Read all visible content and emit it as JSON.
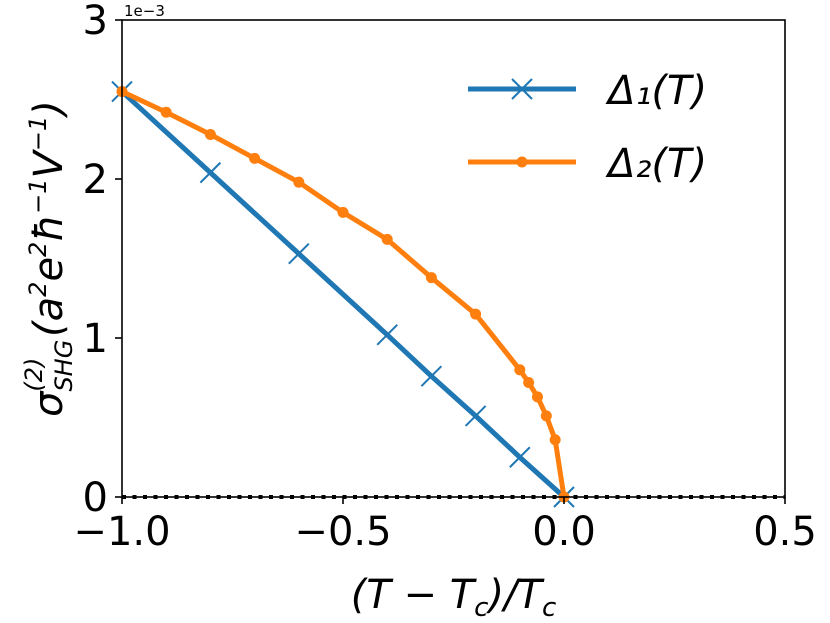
{
  "chart_data": {
    "type": "line",
    "xlabel": "(T − T_c)/T_c",
    "ylabel": "σ^(2)_SHG (a²e²ħ⁻¹V⁻¹)",
    "xlim": [
      -1.0,
      0.5
    ],
    "ylim": [
      0,
      3
    ],
    "y_offset_label": "1e−3",
    "x_ticks": [
      -1.0,
      -0.5,
      0.0,
      0.5
    ],
    "x_tick_labels": [
      "−1.0",
      "−0.5",
      "0.0",
      "0.5"
    ],
    "y_ticks": [
      0,
      1,
      2,
      3
    ],
    "y_tick_labels": [
      "0",
      "1",
      "2",
      "3"
    ],
    "legend_position": "top-right",
    "reference_line": {
      "y": 0,
      "style": "dotted",
      "color": "#000000"
    },
    "series": [
      {
        "name": "Δ₁(T)",
        "color": "#1f77b4",
        "marker": "x",
        "x": [
          -1.0,
          -0.8,
          -0.6,
          -0.4,
          -0.3,
          -0.2,
          -0.1,
          0.0
        ],
        "y": [
          2.55,
          2.04,
          1.53,
          1.02,
          0.76,
          0.51,
          0.25,
          0.0
        ]
      },
      {
        "name": "Δ₂(T)",
        "color": "#ff7f0e",
        "marker": "o",
        "x": [
          -1.0,
          -0.9,
          -0.8,
          -0.7,
          -0.6,
          -0.5,
          -0.4,
          -0.3,
          -0.2,
          -0.1,
          -0.08,
          -0.06,
          -0.04,
          -0.02,
          0.0
        ],
        "y": [
          2.55,
          2.42,
          2.28,
          2.13,
          1.98,
          1.79,
          1.62,
          1.38,
          1.15,
          0.8,
          0.72,
          0.63,
          0.51,
          0.36,
          0.0
        ]
      }
    ]
  }
}
